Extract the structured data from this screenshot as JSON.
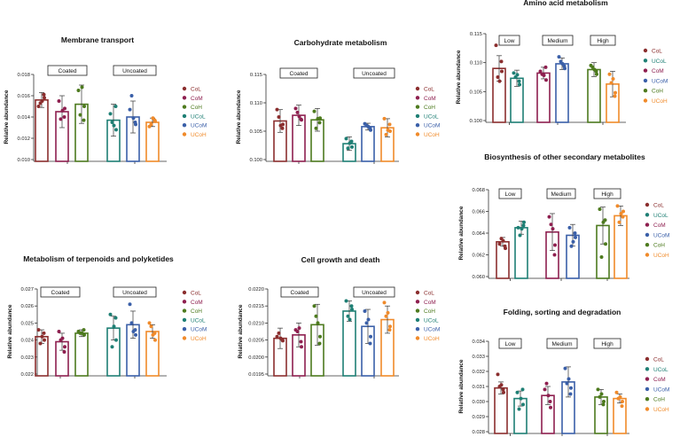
{
  "figure": {
    "colors": {
      "CoL": "#8B2E2E",
      "CoM": "#8E1F4F",
      "CoH": "#4D7A1E",
      "UCoL": "#1E7F74",
      "UCoM": "#3A5FA8",
      "UCoH": "#F08A2A",
      "axis": "#333333"
    }
  },
  "chart_data": [
    {
      "type": "bar",
      "title": "Membrane transport",
      "ylabel": "Relative abundance",
      "ylim": [
        0.01,
        0.018
      ],
      "yticks": [
        0.01,
        0.012,
        0.014,
        0.016,
        0.018
      ],
      "ytick_labels": [
        "0.010",
        "0.012",
        "0.014",
        "0.016",
        "0.018"
      ],
      "group_labels": [
        "Coated",
        "Uncoated"
      ],
      "categories": [
        "CoL",
        "CoM",
        "CoH",
        "UCoL",
        "UCoM",
        "UCoH"
      ],
      "legend": [
        "CoL",
        "CoM",
        "CoH",
        "UCoL",
        "UCoM",
        "UCoH"
      ],
      "values": [
        0.0156,
        0.0145,
        0.0152,
        0.0137,
        0.014,
        0.0135
      ],
      "errors": [
        0.0007,
        0.0015,
        0.0018,
        0.0015,
        0.0015,
        0.0004
      ],
      "points": [
        [
          0.015,
          0.0158,
          0.0153,
          0.0161,
          0.0155
        ],
        [
          0.0155,
          0.0148,
          0.0138,
          0.014,
          0.0146
        ],
        [
          0.0165,
          0.015,
          0.0142,
          0.0137,
          0.0168
        ],
        [
          0.0143,
          0.0128,
          0.0135,
          0.015,
          0.0132
        ],
        [
          0.0147,
          0.0133,
          0.016,
          0.0135,
          0.0139
        ],
        [
          0.0131,
          0.0136,
          0.0133,
          0.0137,
          0.0139
        ]
      ]
    },
    {
      "type": "bar",
      "title": "Carbohydrate metabolism",
      "ylabel": "Relative abundance",
      "ylim": [
        0.1,
        0.115
      ],
      "yticks": [
        0.1,
        0.105,
        0.11,
        0.115
      ],
      "ytick_labels": [
        "0.100",
        "0.105",
        "0.110",
        "0.115"
      ],
      "group_labels": [
        "Coated",
        "Uncoated"
      ],
      "categories": [
        "CoL",
        "CoM",
        "CoH",
        "UCoL",
        "UCoM",
        "UCoH"
      ],
      "legend": [
        "CoL",
        "CoM",
        "CoH",
        "UCoL",
        "UCoM",
        "UCoH"
      ],
      "values": [
        0.1068,
        0.1078,
        0.107,
        0.1028,
        0.1058,
        0.1056
      ],
      "errors": [
        0.002,
        0.0018,
        0.002,
        0.0012,
        0.0006,
        0.0016
      ],
      "points": [
        [
          0.1088,
          0.1062,
          0.1075,
          0.1055,
          0.106
        ],
        [
          0.109,
          0.107,
          0.1083,
          0.1071,
          0.1076
        ],
        [
          0.1085,
          0.1073,
          0.1055,
          0.1065,
          0.1072
        ],
        [
          0.1037,
          0.1022,
          0.102,
          0.1032,
          0.1029
        ],
        [
          0.1063,
          0.1052,
          0.106,
          0.1055,
          0.1058
        ],
        [
          0.1072,
          0.105,
          0.1044,
          0.1062,
          0.1052
        ]
      ]
    },
    {
      "type": "bar",
      "title": "Amino acid metabolism",
      "ylabel": "Relative abundance",
      "ylim": [
        0.1,
        0.115
      ],
      "yticks": [
        0.1,
        0.105,
        0.11,
        0.115
      ],
      "ytick_labels": [
        "0.100",
        "0.105",
        "0.110",
        "0.115"
      ],
      "group_labels": [
        "Low",
        "Medium",
        "High"
      ],
      "categories": [
        "CoL",
        "UCoL",
        "CoM",
        "UCoM",
        "CoH",
        "UCoH"
      ],
      "legend": [
        "CoL",
        "UCoL",
        "CoM",
        "UCoM",
        "CoH",
        "UCoH"
      ],
      "values": [
        0.109,
        0.1073,
        0.1082,
        0.1098,
        0.1088,
        0.1063
      ],
      "errors": [
        0.0022,
        0.0014,
        0.001,
        0.001,
        0.0012,
        0.0022
      ],
      "points": [
        [
          0.113,
          0.1085,
          0.1075,
          0.1102,
          0.1068
        ],
        [
          0.1082,
          0.1062,
          0.1075,
          0.1068,
          0.1079
        ],
        [
          0.1085,
          0.107,
          0.108,
          0.1092,
          0.1078
        ],
        [
          0.111,
          0.109,
          0.1102,
          0.1094,
          0.1098
        ],
        [
          0.1095,
          0.108,
          0.1092,
          0.1085,
          0.1088
        ],
        [
          0.108,
          0.1048,
          0.1065,
          0.1042,
          0.1072
        ]
      ]
    },
    {
      "type": "bar",
      "title": "Biosynthesis of other secondary metabolites",
      "ylabel": "Relative abundance",
      "ylim": [
        0.06,
        0.068
      ],
      "yticks": [
        0.06,
        0.062,
        0.064,
        0.066,
        0.068
      ],
      "ytick_labels": [
        "0.060",
        "0.062",
        "0.064",
        "0.066",
        "0.068"
      ],
      "group_labels": [
        "Low",
        "Medium",
        "High"
      ],
      "categories": [
        "CoL",
        "UCoL",
        "CoM",
        "UCoM",
        "CoH",
        "UCoH"
      ],
      "legend": [
        "CoL",
        "UCoL",
        "CoM",
        "UCoM",
        "CoH",
        "UCoH"
      ],
      "values": [
        0.0632,
        0.0645,
        0.0641,
        0.0638,
        0.0647,
        0.0656
      ],
      "errors": [
        0.0004,
        0.0006,
        0.0017,
        0.001,
        0.0017,
        0.0009
      ],
      "points": [
        [
          0.063,
          0.0626,
          0.0635,
          0.0628,
          0.0633
        ],
        [
          0.0645,
          0.065,
          0.0638,
          0.0647,
          0.0644
        ],
        [
          0.0655,
          0.0629,
          0.0648,
          0.062,
          0.0644
        ],
        [
          0.0645,
          0.0636,
          0.0628,
          0.064,
          0.0632
        ],
        [
          0.0662,
          0.063,
          0.0618,
          0.0652,
          0.065
        ],
        [
          0.0665,
          0.066,
          0.065,
          0.0655,
          0.0658
        ]
      ]
    },
    {
      "type": "bar",
      "title": "Metabolism of terpenoids and polyketides",
      "ylabel": "Relative abundance",
      "ylim": [
        0.022,
        0.027
      ],
      "yticks": [
        0.022,
        0.023,
        0.024,
        0.025,
        0.026,
        0.027
      ],
      "ytick_labels": [
        "0.022",
        "0.023",
        "0.024",
        "0.025",
        "0.026",
        "0.027"
      ],
      "group_labels": [
        "Coated",
        "Uncoated"
      ],
      "categories": [
        "CoL",
        "CoM",
        "CoH",
        "UCoL",
        "UCoM",
        "UCoH"
      ],
      "legend": [
        "CoL",
        "CoM",
        "CoH",
        "UCoL",
        "UCoM",
        "UCoH"
      ],
      "values": [
        0.0242,
        0.0239,
        0.0244,
        0.0247,
        0.0249,
        0.0245
      ],
      "errors": [
        0.0004,
        0.0005,
        0.0002,
        0.0007,
        0.0008,
        0.0004
      ],
      "points": [
        [
          0.0246,
          0.024,
          0.0238,
          0.0244,
          0.0242
        ],
        [
          0.0245,
          0.0236,
          0.024,
          0.0233,
          0.0241
        ],
        [
          0.0245,
          0.0243,
          0.0244,
          0.0246,
          0.0244
        ],
        [
          0.0255,
          0.024,
          0.0236,
          0.0253,
          0.0248
        ],
        [
          0.0261,
          0.0243,
          0.025,
          0.0246,
          0.0245
        ],
        [
          0.025,
          0.024,
          0.0248,
          0.0244,
          0.0243
        ]
      ]
    },
    {
      "type": "bar",
      "title": "Cell growth and death",
      "ylabel": "Relative abundance",
      "ylim": [
        0.0195,
        0.022
      ],
      "yticks": [
        0.0195,
        0.02,
        0.0205,
        0.021,
        0.0215,
        0.022
      ],
      "ytick_labels": [
        "0.0195",
        "0.0200",
        "0.0205",
        "0.0210",
        "0.0215",
        "0.0220"
      ],
      "group_labels": [
        "Coated",
        "Uncoated"
      ],
      "categories": [
        "CoL",
        "CoM",
        "CoH",
        "UCoL",
        "UCoM",
        "UCoH"
      ],
      "legend": [
        "CoL",
        "CoM",
        "CoH",
        "UCoL",
        "UCoM",
        "UCoH"
      ],
      "values": [
        0.02055,
        0.02065,
        0.02095,
        0.02135,
        0.0209,
        0.0211
      ],
      "errors": [
        0.0003,
        0.00035,
        0.0006,
        0.0003,
        0.0005,
        0.0004
      ],
      "points": [
        [
          0.0206,
          0.02048,
          0.0207,
          0.0205,
          0.02055
        ],
        [
          0.0208,
          0.0203,
          0.02075,
          0.02045,
          0.02085
        ],
        [
          0.0215,
          0.0206,
          0.0212,
          0.0204,
          0.021
        ],
        [
          0.02165,
          0.0214,
          0.0212,
          0.0215,
          0.0211
        ],
        [
          0.02135,
          0.0206,
          0.021,
          0.0204,
          0.0211
        ],
        [
          0.0216,
          0.0209,
          0.0212,
          0.0208,
          0.0213
        ]
      ]
    },
    {
      "type": "bar",
      "title": "Folding, sorting and degradation",
      "ylabel": "Relative abundance",
      "ylim": [
        0.028,
        0.034
      ],
      "yticks": [
        0.028,
        0.029,
        0.03,
        0.031,
        0.032,
        0.033,
        0.034
      ],
      "ytick_labels": [
        "0.028",
        "0.029",
        "0.030",
        "0.031",
        "0.032",
        "0.033",
        "0.034"
      ],
      "group_labels": [
        "Low",
        "Medium",
        "High"
      ],
      "categories": [
        "CoL",
        "UCoL",
        "CoM",
        "UCoM",
        "CoH",
        "UCoH"
      ],
      "legend": [
        "CoL",
        "UCoL",
        "CoM",
        "UCoM",
        "CoH",
        "UCoH"
      ],
      "values": [
        0.0309,
        0.0302,
        0.0304,
        0.0313,
        0.0303,
        0.0302
      ],
      "errors": [
        0.0004,
        0.0005,
        0.0006,
        0.001,
        0.0005,
        0.0003
      ],
      "points": [
        [
          0.0318,
          0.0306,
          0.031,
          0.0308,
          0.0311
        ],
        [
          0.0306,
          0.0298,
          0.0295,
          0.0308,
          0.0302
        ],
        [
          0.0308,
          0.0296,
          0.0312,
          0.03,
          0.0304
        ],
        [
          0.0322,
          0.0309,
          0.0312,
          0.0305,
          0.0315
        ],
        [
          0.0308,
          0.03,
          0.0303,
          0.0298,
          0.0305
        ],
        [
          0.0306,
          0.03,
          0.0302,
          0.0297,
          0.0303
        ]
      ]
    }
  ]
}
